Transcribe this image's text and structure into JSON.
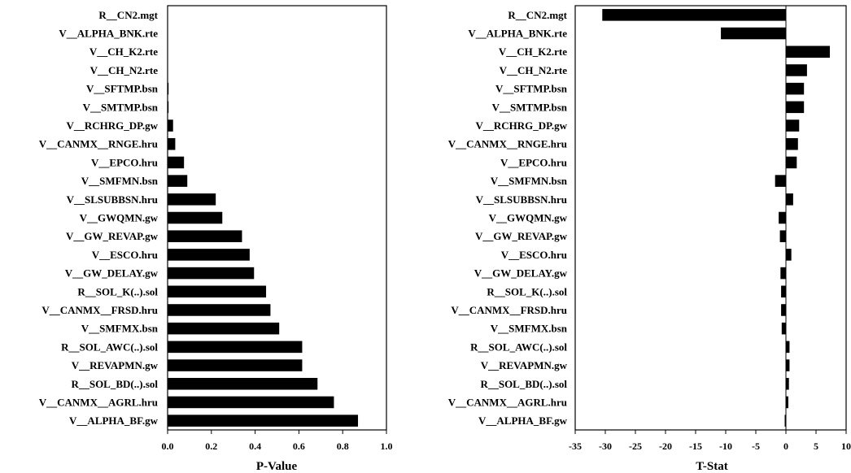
{
  "chart_data": [
    {
      "type": "bar",
      "orientation": "horizontal",
      "title": "",
      "xlabel": "P-Value",
      "ylabel": "",
      "xlim": [
        0.0,
        1.0
      ],
      "xticks": [
        "0.0",
        "0.2",
        "0.4",
        "0.6",
        "0.8",
        "1.0"
      ],
      "grid": false,
      "categories": [
        "R__CN2.mgt",
        "V__ALPHA_BNK.rte",
        "V__CH_K2.rte",
        "V__CH_N2.rte",
        "V__SFTMP.bsn",
        "V__SMTMP.bsn",
        "V__RCHRG_DP.gw",
        "V__CANMX__RNGE.hru",
        "V__EPCO.hru",
        "V__SMFMN.bsn",
        "V__SLSUBBSN.hru",
        "V__GWQMN.gw",
        "V__GW_REVAP.gw",
        "V__ESCO.hru",
        "V__GW_DELAY.gw",
        "R__SOL_K(..).sol",
        "V__CANMX__FRSD.hru",
        "V__SMFMX.bsn",
        "R__SOL_AWC(..).sol",
        "V__REVAPMN.gw",
        "R__SOL_BD(..).sol",
        "V__CANMX__AGRL.hru",
        "V__ALPHA_BF.gw"
      ],
      "values": [
        0.0,
        0.0,
        0.0,
        0.0,
        0.004,
        0.004,
        0.025,
        0.035,
        0.075,
        0.09,
        0.22,
        0.25,
        0.34,
        0.375,
        0.395,
        0.45,
        0.47,
        0.51,
        0.615,
        0.615,
        0.685,
        0.76,
        0.87
      ]
    },
    {
      "type": "bar",
      "orientation": "horizontal",
      "title": "",
      "xlabel": "T-Stat",
      "ylabel": "",
      "xlim": [
        -35,
        10
      ],
      "xticks": [
        "-35",
        "-30",
        "-25",
        "-20",
        "-15",
        "-10",
        "-5",
        "0",
        "5",
        "10"
      ],
      "grid": false,
      "categories": [
        "R__CN2.mgt",
        "V__ALPHA_BNK.rte",
        "V__CH_K2.rte",
        "V__CH_N2.rte",
        "V__SFTMP.bsn",
        "V__SMTMP.bsn",
        "V__RCHRG_DP.gw",
        "V__CANMX__RNGE.hru",
        "V__EPCO.hru",
        "V__SMFMN.bsn",
        "V__SLSUBBSN.hru",
        "V__GWQMN.gw",
        "V__GW_REVAP.gw",
        "V__ESCO.hru",
        "V__GW_DELAY.gw",
        "R__SOL_K(..).sol",
        "V__CANMX__FRSD.hru",
        "V__SMFMX.bsn",
        "R__SOL_AWC(..).sol",
        "V__REVAPMN.gw",
        "R__SOL_BD(..).sol",
        "V__CANMX__AGRL.hru",
        "V__ALPHA_BF.gw"
      ],
      "values": [
        -30.5,
        -10.8,
        7.3,
        3.5,
        3.0,
        3.0,
        2.2,
        2.0,
        1.8,
        -1.8,
        1.2,
        -1.2,
        -1.0,
        0.9,
        -0.9,
        -0.8,
        -0.8,
        -0.7,
        0.6,
        0.6,
        0.5,
        0.4,
        -0.2
      ]
    }
  ]
}
